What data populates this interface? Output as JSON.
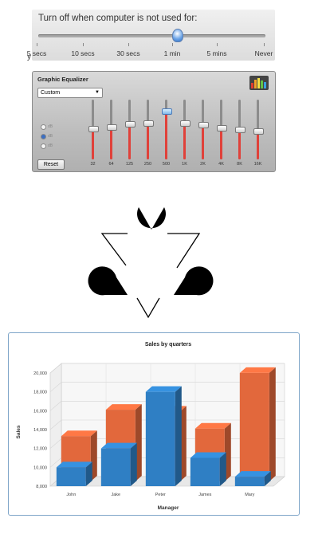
{
  "slider": {
    "title": "Turn off when computer is not used for:",
    "value": "1 min",
    "ticks": [
      "5 secs",
      "10 secs",
      "30 secs",
      "1 min",
      "5 mins",
      "Never"
    ]
  },
  "annotation": {
    "mark": "y"
  },
  "equalizer": {
    "title": "Graphic Equalizer",
    "preset": "Custom",
    "reset_label": "Reset",
    "radio_labels": [
      "dB",
      "dB",
      "dB"
    ],
    "bands": [
      "32",
      "64",
      "125",
      "250",
      "500",
      "1K",
      "2K",
      "4K",
      "8K",
      "16K"
    ],
    "levels": [
      0.52,
      0.55,
      0.6,
      0.62,
      0.82,
      0.62,
      0.59,
      0.54,
      0.51,
      0.48
    ],
    "active_band_index": 4
  },
  "chart_data": {
    "type": "bar",
    "title": "Sales by quarters",
    "xlabel": "Manager",
    "ylabel": "Sales",
    "categories": [
      "John",
      "Jake",
      "Peter",
      "James",
      "Mary"
    ],
    "series": [
      {
        "name": "Blue",
        "color": "#2f7fc4",
        "values": [
          10000,
          12000,
          18000,
          11000,
          9000
        ]
      },
      {
        "name": "Orange",
        "color": "#e2683c",
        "values": [
          12800,
          15600,
          15400,
          13600,
          19500
        ]
      }
    ],
    "ylim": [
      8000,
      20000
    ],
    "yticks": [
      "8,000",
      "10,000",
      "12,000",
      "14,000",
      "16,000",
      "18,000",
      "20,000"
    ]
  }
}
